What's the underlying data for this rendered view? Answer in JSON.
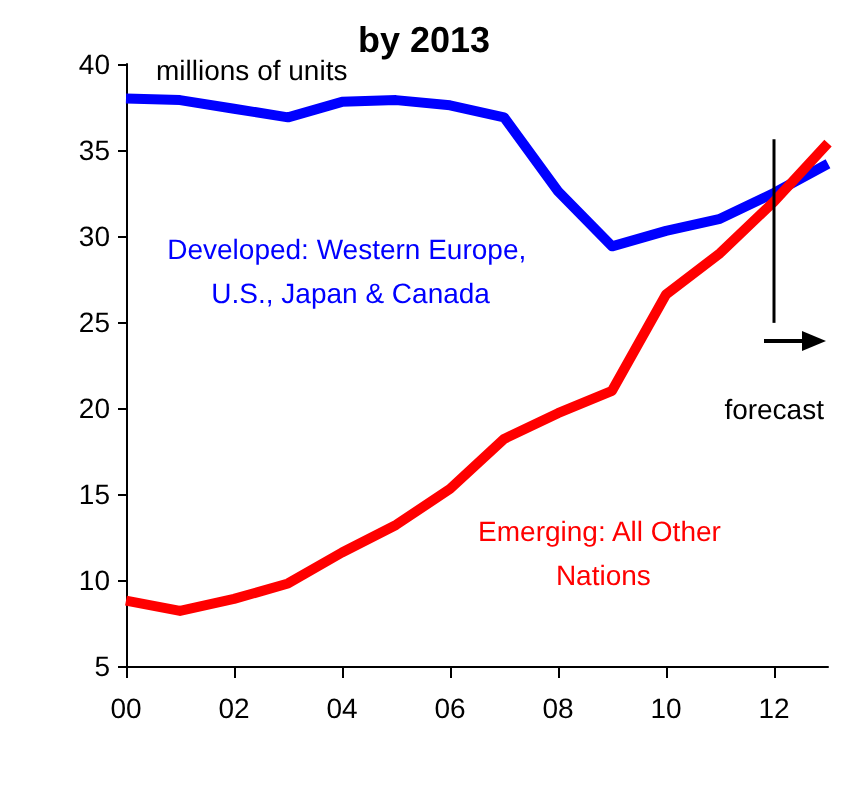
{
  "chart_data": {
    "type": "line",
    "title": "by 2013",
    "ylabel": "millions of units",
    "x": [
      2000,
      2001,
      2002,
      2003,
      2004,
      2005,
      2006,
      2007,
      2008,
      2009,
      2010,
      2011,
      2012,
      2013
    ],
    "series": [
      {
        "name": "Developed: Western Europe, U.S., Japan & Canada",
        "color": "#0000ff",
        "values": [
          38.0,
          37.9,
          37.4,
          36.9,
          37.8,
          37.9,
          37.6,
          36.9,
          32.6,
          29.4,
          30.3,
          31.0,
          32.5,
          34.2
        ]
      },
      {
        "name": "Emerging: All Other Nations",
        "color": "#ff0000",
        "values": [
          8.8,
          8.2,
          8.9,
          9.8,
          11.6,
          13.2,
          15.3,
          18.2,
          19.7,
          21.0,
          26.6,
          29.0,
          32.0,
          35.4
        ]
      }
    ],
    "xlim": [
      2000,
      2013
    ],
    "xticks": [
      {
        "value": 2000,
        "label": "00"
      },
      {
        "value": 2002,
        "label": "02"
      },
      {
        "value": 2004,
        "label": "04"
      },
      {
        "value": 2006,
        "label": "06"
      },
      {
        "value": 2008,
        "label": "08"
      },
      {
        "value": 2010,
        "label": "10"
      },
      {
        "value": 2012,
        "label": "12"
      }
    ],
    "ylim": [
      5,
      40
    ],
    "yticks": [
      5,
      10,
      15,
      20,
      25,
      30,
      35,
      40
    ],
    "ref_lines": [
      {
        "axis": "x",
        "value": 2012,
        "color": "#000000"
      }
    ],
    "annotations": [
      "forecast"
    ],
    "grid": false,
    "legend": false,
    "marker": "none",
    "line_style": "solid"
  }
}
